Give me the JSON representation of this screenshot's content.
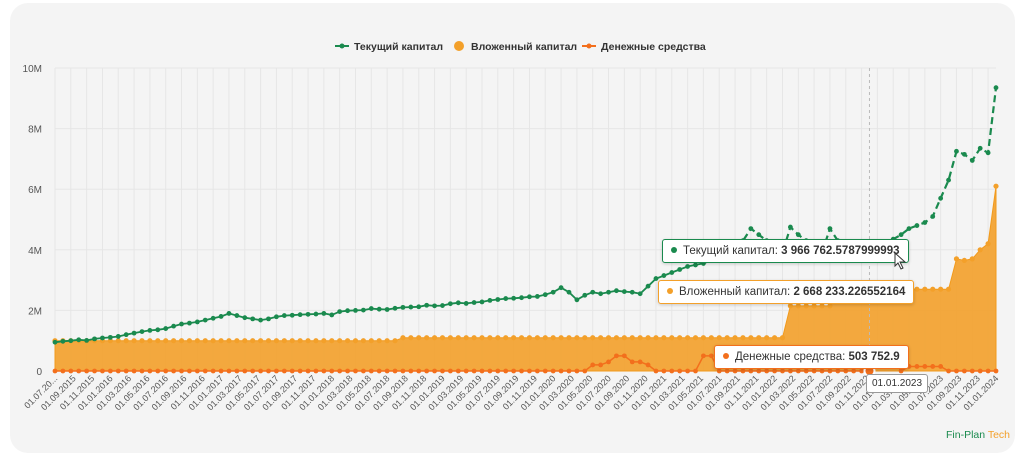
{
  "chart_data": {
    "type": "line",
    "title": "",
    "xlabel": "",
    "ylabel": "",
    "ylim": [
      0,
      10000000
    ],
    "y_ticks": [
      "0",
      "2M",
      "4M",
      "6M",
      "8M",
      "10M"
    ],
    "legend_position": "top-center",
    "grid": true,
    "x_labels": [
      "01.07.20...",
      "01.09.2015",
      "01.11.2015",
      "01.01.2016",
      "01.03.2016",
      "01.05.2016",
      "01.07.2016",
      "01.09.2016",
      "01.11.2016",
      "01.01.2017",
      "01.03.2017",
      "01.05.2017",
      "01.07.2017",
      "01.09.2017",
      "01.11.2017",
      "01.01.2018",
      "01.03.2018",
      "01.05.2018",
      "01.07.2018",
      "01.09.2018",
      "01.11.2018",
      "01.01.2019",
      "01.03.2019",
      "01.05.2019",
      "01.07.2019",
      "01.09.2019",
      "01.11.2019",
      "01.01.2020",
      "01.03.2020",
      "01.05.2020",
      "01.07.2020",
      "01.09.2020",
      "01.11.2020",
      "01.01.2021",
      "01.03.2021",
      "01.05.2021",
      "01.07.2021",
      "01.09.2021",
      "01.11.2021",
      "01.01.2022",
      "01.03.2022",
      "01.05.2022",
      "01.07.2022",
      "01.09.2022",
      "01.11.2022",
      "01.01.2023",
      "01.03.2023",
      "01.05.2023",
      "01.07.2023",
      "01.09.2023",
      "01.11.2023",
      "01.01.2024"
    ],
    "series": [
      {
        "name": "Текущий капитал",
        "color": "#1a8a4e",
        "style": "line-dots",
        "values": [
          950000,
          980000,
          1000000,
          1030000,
          1010000,
          1060000,
          1090000,
          1110000,
          1140000,
          1200000,
          1250000,
          1300000,
          1340000,
          1360000,
          1400000,
          1480000,
          1550000,
          1580000,
          1620000,
          1680000,
          1740000,
          1800000,
          1900000,
          1830000,
          1760000,
          1720000,
          1680000,
          1720000,
          1790000,
          1830000,
          1840000,
          1860000,
          1870000,
          1880000,
          1900000,
          1850000,
          1960000,
          1990000,
          2000000,
          2010000,
          2060000,
          2040000,
          2030000,
          2070000,
          2100000,
          2110000,
          2120000,
          2170000,
          2150000,
          2160000,
          2220000,
          2250000,
          2230000,
          2260000,
          2280000,
          2330000,
          2360000,
          2390000,
          2400000,
          2420000,
          2450000,
          2460000,
          2520000,
          2600000,
          2750000,
          2600000,
          2350000,
          2500000,
          2600000,
          2550000,
          2600000,
          2650000,
          2620000,
          2600000,
          2550000,
          2800000,
          3050000,
          3150000,
          3250000,
          3350000,
          3450000,
          3500000,
          3550000,
          3650000,
          3800000,
          3900000,
          4100000,
          4300000,
          4700000,
          4500000,
          4300000,
          4100000,
          3900000,
          4750000,
          4500000,
          4300000,
          4100000,
          3900000,
          4700000,
          4300000,
          4200000,
          4100000,
          4050000,
          3966763,
          4100000,
          4250000,
          4350000,
          4500000,
          4700000,
          4800000,
          4900000,
          5100000,
          5700000,
          6300000,
          7250000,
          7150000,
          6950000,
          7350000,
          7200000,
          9350000
        ]
      },
      {
        "name": "Вложенный капитал",
        "color": "#f3a02a",
        "style": "area",
        "values": [
          1000000,
          1000000,
          1000000,
          1000000,
          1000000,
          1000000,
          1000000,
          1000000,
          1000000,
          1000000,
          1000000,
          1000000,
          1000000,
          1000000,
          1000000,
          1000000,
          1000000,
          1000000,
          1000000,
          1000000,
          1000000,
          1000000,
          1000000,
          1000000,
          1000000,
          1000000,
          1000000,
          1000000,
          1000000,
          1000000,
          1000000,
          1000000,
          1000000,
          1000000,
          1000000,
          1000000,
          1000000,
          1000000,
          1000000,
          1000000,
          1000000,
          1000000,
          1000000,
          1000000,
          1100000,
          1100000,
          1100000,
          1100000,
          1100000,
          1100000,
          1100000,
          1100000,
          1100000,
          1100000,
          1100000,
          1100000,
          1100000,
          1100000,
          1100000,
          1100000,
          1100000,
          1100000,
          1100000,
          1100000,
          1100000,
          1100000,
          1100000,
          1100000,
          1100000,
          1100000,
          1100000,
          1100000,
          1100000,
          1100000,
          1100000,
          1100000,
          1100000,
          1100000,
          1100000,
          1100000,
          1100000,
          1100000,
          1100000,
          1100000,
          1100000,
          1100000,
          1100000,
          1100000,
          1100000,
          1100000,
          1100000,
          1100000,
          1100000,
          2150000,
          2150000,
          2150000,
          2150000,
          2150000,
          2150000,
          2668233,
          2668233,
          2668233,
          2668233,
          2668233,
          2700000,
          2700000,
          2700000,
          2700000,
          2700000,
          2700000,
          2700000,
          2700000,
          2700000,
          2700000,
          3700000,
          3650000,
          3700000,
          4000000,
          4200000,
          6100000
        ]
      },
      {
        "name": "Денежные средства",
        "color": "#f36f1c",
        "style": "line-dots",
        "values": [
          0,
          0,
          0,
          0,
          0,
          0,
          0,
          0,
          0,
          0,
          0,
          0,
          0,
          0,
          0,
          0,
          0,
          0,
          0,
          0,
          0,
          0,
          0,
          0,
          0,
          0,
          0,
          0,
          0,
          0,
          0,
          0,
          0,
          0,
          0,
          0,
          0,
          0,
          0,
          0,
          0,
          0,
          0,
          0,
          0,
          0,
          0,
          0,
          0,
          0,
          0,
          0,
          0,
          0,
          0,
          0,
          0,
          0,
          0,
          0,
          0,
          0,
          0,
          0,
          0,
          0,
          0,
          0,
          200000,
          200000,
          300000,
          500000,
          500000,
          300000,
          300000,
          200000,
          0,
          0,
          0,
          0,
          0,
          0,
          500000,
          500000,
          0,
          0,
          0,
          0,
          0,
          0,
          0,
          0,
          0,
          0,
          0,
          0,
          0,
          0,
          0,
          0,
          0,
          0,
          0,
          0,
          503753,
          503753,
          503753,
          0,
          150000,
          150000,
          150000,
          150000,
          150000,
          0,
          0,
          0,
          0,
          0,
          0,
          0
        ]
      }
    ]
  },
  "legend": [
    {
      "label": "Текущий капитал",
      "color": "#1a8a4e",
      "marker": "line"
    },
    {
      "label": "Вложенный капитал",
      "color": "#f3a02a",
      "marker": "dot"
    },
    {
      "label": "Денежные средства",
      "color": "#f36f1c",
      "marker": "line"
    }
  ],
  "tooltip": {
    "current_label": "Текущий капитал:",
    "current_value": "3 966 762.5787999993",
    "invested_label": "Вложенный капитал:",
    "invested_value": "2 668 233.226552164",
    "cash_label": "Денежные средства:",
    "cash_value": "503 752.9",
    "date": "01.01.2023"
  },
  "brand": {
    "part1": "Fin-Plan",
    "part2": "Tech"
  }
}
